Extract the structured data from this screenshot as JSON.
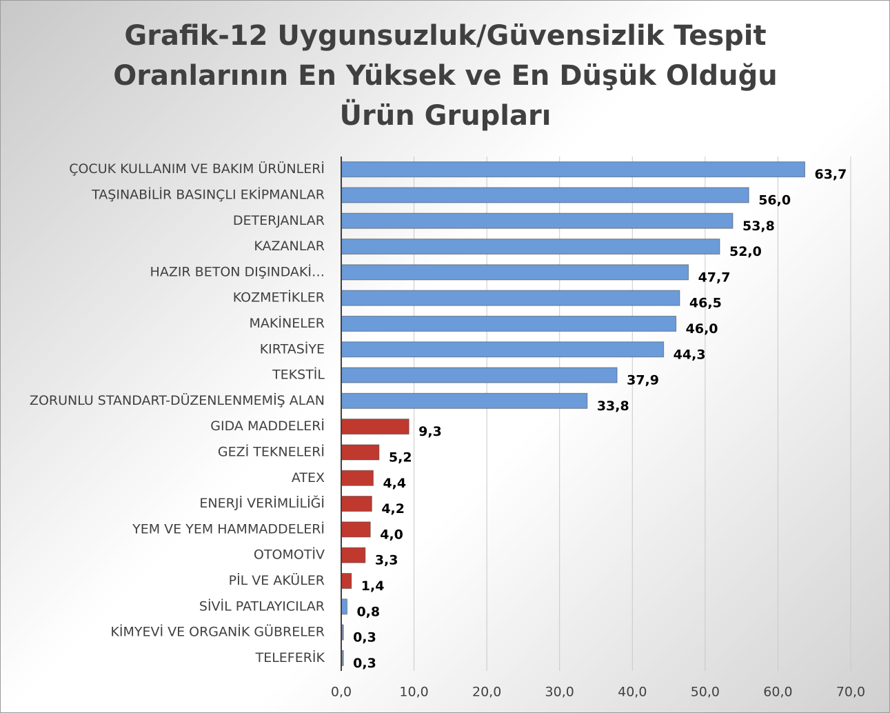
{
  "chart_data": {
    "type": "barh",
    "title": "Grafik-12 Uygunsuzluk/Güvensizlik Tespit Oranlarının En Yüksek ve En Düşük Olduğu Ürün Grupları",
    "categories": [
      "ÇOCUK KULLANIM VE BAKIM ÜRÜNLERİ",
      "TAŞINABİLİR BASINÇLI EKİPMANLAR ",
      "DETERJANLAR",
      "KAZANLAR",
      "HAZIR BETON DIŞINDAKİ…",
      "KOZMETİKLER",
      "MAKİNELER",
      "KIRTASİYE ",
      "TEKSTİL",
      "ZORUNLU STANDART-DÜZENLENMEMİŞ ALAN",
      "GIDA MADDELERİ",
      "GEZİ TEKNELERİ",
      "ATEX",
      "ENERJİ VERİMLİLİĞİ",
      "YEM VE YEM HAMMADDELERİ",
      "OTOMOTİV",
      "PİL VE AKÜLER",
      "SİVİL PATLAYICILAR",
      "KİMYEVİ VE ORGANİK GÜBRELER",
      "TELEFERİK"
    ],
    "values": [
      63.7,
      56.0,
      53.8,
      52.0,
      47.7,
      46.5,
      46.0,
      44.3,
      37.9,
      33.8,
      9.3,
      5.2,
      4.4,
      4.2,
      4.0,
      3.3,
      1.4,
      0.8,
      0.3,
      0.3
    ],
    "value_labels": [
      "63,7",
      "56,0",
      "53,8",
      "52,0",
      "47,7",
      "46,5",
      "46,0",
      "44,3",
      "37,9",
      "33,8",
      "9,3",
      "5,2",
      "4,4",
      "4,2",
      "4,0",
      "3,3",
      "1,4",
      "0,8",
      "0,3",
      "0,3"
    ],
    "colors": [
      "#6b9bd8",
      "#6b9bd8",
      "#6b9bd8",
      "#6b9bd8",
      "#6b9bd8",
      "#6b9bd8",
      "#6b9bd8",
      "#6b9bd8",
      "#6b9bd8",
      "#6b9bd8",
      "#c0392f",
      "#c0392f",
      "#c0392f",
      "#c0392f",
      "#c0392f",
      "#c0392f",
      "#c0392f",
      "#6b9bd8",
      "#7f8fa6",
      "#7f8fa6"
    ],
    "xlim": [
      0,
      70
    ],
    "xticks": [
      {
        "value": 0,
        "label": "0,0"
      },
      {
        "value": 10,
        "label": "10,0"
      },
      {
        "value": 20,
        "label": "20,0"
      },
      {
        "value": 30,
        "label": "30,0"
      },
      {
        "value": 40,
        "label": "40,0"
      },
      {
        "value": 50,
        "label": "50,0"
      },
      {
        "value": 60,
        "label": "60,0"
      },
      {
        "value": 70,
        "label": "70,0"
      }
    ],
    "grid": true
  }
}
